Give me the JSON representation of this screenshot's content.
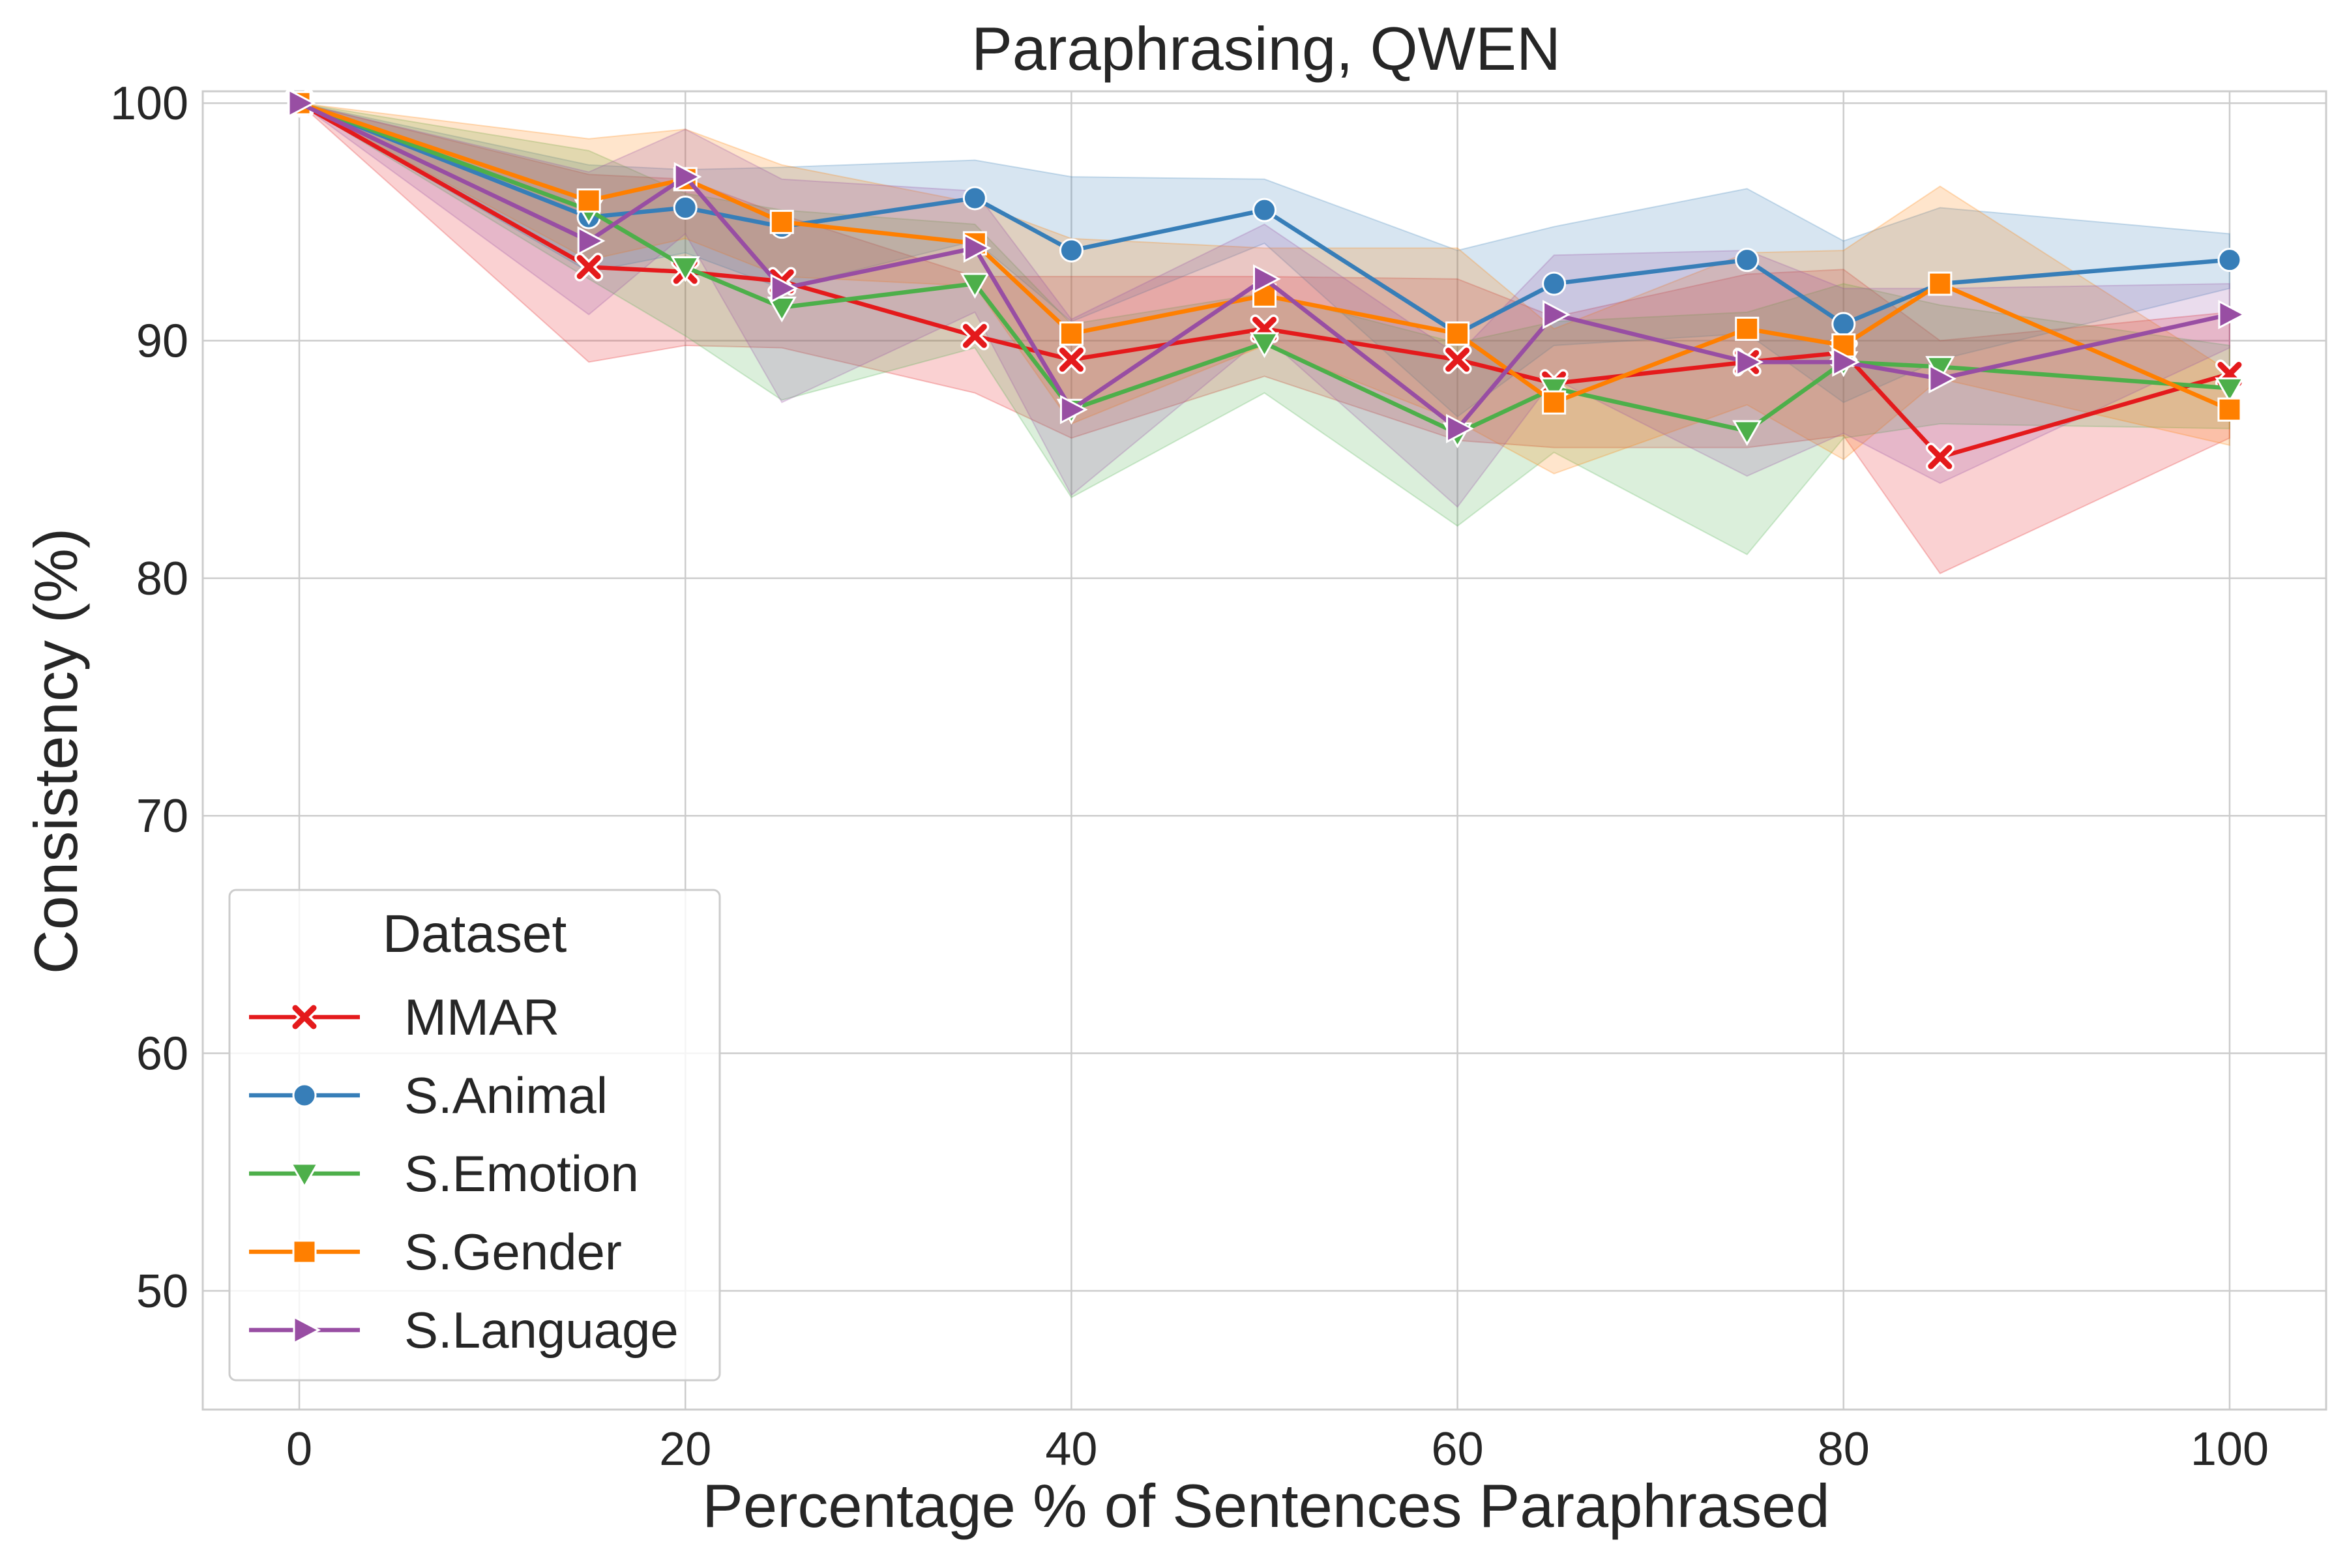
{
  "chart_data": {
    "type": "line",
    "title": "Paraphrasing, QWEN",
    "xlabel": "Percentage % of Sentences Paraphrased",
    "ylabel": "Consistency (%)",
    "xlim": [
      -5,
      105
    ],
    "ylim": [
      45,
      100.5
    ],
    "xticks": [
      0,
      20,
      40,
      60,
      80,
      100
    ],
    "yticks": [
      50,
      60,
      70,
      80,
      90,
      100
    ],
    "grid": true,
    "legend": {
      "title": "Dataset",
      "placement": "lower-left"
    },
    "x": [
      0,
      15,
      20,
      25,
      35,
      40,
      50,
      60,
      65,
      75,
      80,
      85,
      100
    ],
    "series": [
      {
        "name": "MMAR",
        "color": "#e41a1c",
        "marker": "x",
        "values": [
          100,
          93.1,
          92.9,
          92.5,
          90.2,
          89.2,
          90.5,
          89.2,
          88.2,
          89.1,
          89.5,
          85.1,
          88.6
        ],
        "ci_lower": [
          100,
          89.1,
          89.8,
          89.7,
          87.8,
          85.9,
          88.5,
          85.8,
          85.5,
          85.5,
          86.0,
          80.2,
          85.9
        ],
        "ci_upper": [
          100,
          97.0,
          96.8,
          95.3,
          92.7,
          92.7,
          92.7,
          92.6,
          91.0,
          92.8,
          93.0,
          90.0,
          91.2
        ]
      },
      {
        "name": "S.Animal",
        "color": "#377eb8",
        "marker": "circle",
        "values": [
          100,
          95.2,
          95.6,
          94.8,
          96.0,
          93.8,
          95.5,
          90.3,
          92.4,
          93.4,
          90.7,
          92.4,
          93.4
        ],
        "ci_lower": [
          100,
          92.9,
          93.7,
          92.2,
          94.2,
          90.8,
          94.1,
          86.8,
          89.8,
          90.3,
          87.4,
          89.2,
          92.2
        ],
        "ci_upper": [
          100,
          97.4,
          97.2,
          97.3,
          97.6,
          96.9,
          96.8,
          93.8,
          94.8,
          96.4,
          94.2,
          95.6,
          94.5
        ]
      },
      {
        "name": "S.Emotion",
        "color": "#4daf4a",
        "marker": "triangle-down",
        "values": [
          100,
          95.5,
          93.1,
          91.4,
          92.4,
          87.1,
          89.9,
          86.1,
          88.0,
          86.2,
          89.1,
          88.9,
          88.0
        ],
        "ci_lower": [
          100,
          92.6,
          90.2,
          87.5,
          89.7,
          83.4,
          87.8,
          82.2,
          85.3,
          81.0,
          85.9,
          86.5,
          86.3
        ],
        "ci_upper": [
          100,
          98.0,
          96.2,
          95.5,
          94.9,
          90.7,
          92.0,
          89.9,
          90.8,
          91.2,
          92.4,
          91.5,
          89.8
        ]
      },
      {
        "name": "S.Gender",
        "color": "#ff7f00",
        "marker": "square",
        "values": [
          100,
          95.9,
          96.8,
          95.0,
          94.1,
          90.3,
          91.9,
          90.3,
          87.4,
          90.5,
          89.8,
          92.4,
          87.1
        ],
        "ci_lower": [
          100,
          93.4,
          94.3,
          92.7,
          92.3,
          86.5,
          89.8,
          86.6,
          84.4,
          87.3,
          85.0,
          88.4,
          85.6
        ],
        "ci_upper": [
          100,
          98.5,
          98.9,
          97.4,
          95.8,
          94.3,
          93.9,
          93.9,
          90.5,
          93.7,
          93.8,
          96.5,
          88.7
        ]
      },
      {
        "name": "S.Language",
        "color": "#984ea3",
        "marker": "triangle-right",
        "values": [
          100,
          94.2,
          96.9,
          92.2,
          93.9,
          87.1,
          92.6,
          86.3,
          91.1,
          89.1,
          89.1,
          88.4,
          91.1
        ],
        "ci_lower": [
          100,
          91.1,
          94.5,
          87.4,
          91.2,
          83.5,
          90.2,
          83.0,
          88.4,
          84.3,
          86.1,
          84.0,
          89.7
        ],
        "ci_upper": [
          100,
          97.1,
          98.9,
          96.8,
          96.3,
          90.9,
          94.9,
          89.4,
          93.6,
          93.8,
          92.2,
          92.2,
          92.4
        ]
      }
    ]
  }
}
